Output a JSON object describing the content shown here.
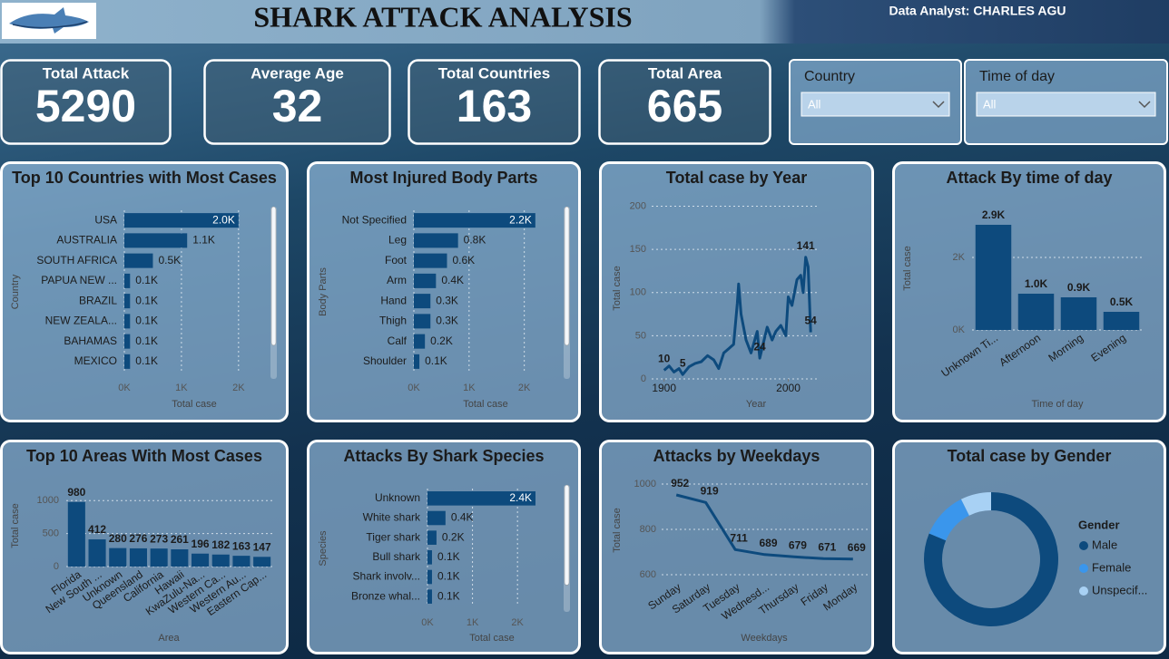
{
  "header": {
    "title": "SHARK ATTACK ANALYSIS",
    "analyst": "Data Analyst:  CHARLES AGU"
  },
  "kpis": [
    {
      "label": "Total Attack",
      "value": 5290
    },
    {
      "label": "Average Age",
      "value": 32
    },
    {
      "label": "Total Countries",
      "value": 163
    },
    {
      "label": "Total Area",
      "value": 665
    }
  ],
  "filters": [
    {
      "label": "Country",
      "value": "All"
    },
    {
      "label": "Time of day",
      "value": "All"
    }
  ],
  "chart_data": [
    {
      "type": "bar",
      "horizontal": true,
      "title": "Top 10 Countries with Most Cases",
      "categories": [
        "USA",
        "AUSTRALIA",
        "SOUTH AFRICA",
        "PAPUA NEW ...",
        "BRAZIL",
        "NEW ZEALA...",
        "BAHAMAS",
        "MEXICO"
      ],
      "values": [
        2000,
        1100,
        500,
        100,
        100,
        100,
        100,
        100
      ],
      "value_labels": [
        "2.0K",
        "1.1K",
        "0.5K",
        "0.1K",
        "0.1K",
        "0.1K",
        "0.1K",
        "0.1K"
      ],
      "color": "#0d4a7d",
      "xlim": [
        0,
        2400
      ],
      "xticks": [
        {
          "value": 0,
          "label": "0K"
        },
        {
          "value": 1000,
          "label": "1K"
        },
        {
          "value": 2000,
          "label": "2K"
        }
      ],
      "xlabel": "Total case",
      "ylabel": "Country",
      "grid": true
    },
    {
      "type": "bar",
      "horizontal": true,
      "title": "Most Injured Body Parts",
      "categories": [
        "Not Specified",
        "Leg",
        "Foot",
        "Arm",
        "Hand",
        "Thigh",
        "Calf",
        "Shoulder"
      ],
      "values": [
        2200,
        800,
        600,
        400,
        300,
        300,
        200,
        100
      ],
      "value_labels": [
        "2.2K",
        "0.8K",
        "0.6K",
        "0.4K",
        "0.3K",
        "0.3K",
        "0.2K",
        "0.1K"
      ],
      "color": "#0d4a7d",
      "xlim": [
        0,
        2400
      ],
      "xticks": [
        {
          "value": 0,
          "label": "0K"
        },
        {
          "value": 1000,
          "label": "1K"
        },
        {
          "value": 2000,
          "label": "2K"
        }
      ],
      "xlabel": "Total case",
      "ylabel": "Body Parts",
      "grid": true
    },
    {
      "type": "line",
      "title": "Total case by Year",
      "x": [
        1900,
        1904,
        1908,
        1912,
        1915,
        1920,
        1925,
        1930,
        1935,
        1940,
        1944,
        1948,
        1952,
        1956,
        1959,
        1960,
        1962,
        1966,
        1970,
        1975,
        1977,
        1983,
        1987,
        1990,
        1994,
        1998,
        2000,
        2003,
        2007,
        2010,
        2012,
        2014,
        2016,
        2018
      ],
      "values": [
        10,
        15,
        8,
        12,
        5,
        14,
        18,
        20,
        27,
        22,
        12,
        30,
        35,
        40,
        88,
        110,
        75,
        45,
        30,
        55,
        24,
        60,
        45,
        55,
        62,
        50,
        95,
        85,
        115,
        120,
        100,
        141,
        130,
        54
      ],
      "value_labels": [
        "10",
        null,
        null,
        null,
        "5",
        null,
        null,
        null,
        null,
        null,
        null,
        null,
        null,
        null,
        null,
        null,
        null,
        null,
        null,
        null,
        "24",
        null,
        null,
        null,
        null,
        null,
        null,
        null,
        null,
        null,
        null,
        "141",
        null,
        "54"
      ],
      "color": "#0d4a7d",
      "xlim": [
        1890,
        2023
      ],
      "xticks": [
        1900,
        2000
      ],
      "ylim": [
        0,
        210
      ],
      "yticks": [
        0,
        50,
        100,
        150,
        200
      ],
      "xlabel": "Year",
      "ylabel": "Total case",
      "grid": true
    },
    {
      "type": "bar",
      "title": "Attack By time of day",
      "categories": [
        "Unknown Ti...",
        "Afternoon",
        "Morning",
        "Evening"
      ],
      "values": [
        2900,
        1000,
        900,
        500
      ],
      "value_labels": [
        "2.9K",
        "1.0K",
        "0.9K",
        "0.5K"
      ],
      "color": "#0d4a7d",
      "ylim": [
        0,
        3200
      ],
      "yticks": [
        {
          "value": 0,
          "label": "0K"
        },
        {
          "value": 2000,
          "label": "2K"
        }
      ],
      "xlabel": "Time of day",
      "ylabel": "Total case",
      "grid": true
    },
    {
      "type": "bar",
      "title": "Top 10 Areas With Most Cases",
      "categories": [
        "Florida",
        "New South ...",
        "Unknown",
        "Queensland",
        "California",
        "Hawaii",
        "KwaZulu-Na...",
        "Western Ca...",
        "Western Au...",
        "Eastern Cap..."
      ],
      "values": [
        980,
        412,
        280,
        276,
        273,
        261,
        196,
        182,
        163,
        147
      ],
      "color": "#0d4a7d",
      "ylim": [
        0,
        1100
      ],
      "yticks": [
        0,
        500,
        1000
      ],
      "xlabel": "Area",
      "ylabel": "Total case",
      "grid": true
    },
    {
      "type": "bar",
      "horizontal": true,
      "title": "Attacks By Shark Species",
      "categories": [
        "Unknown",
        "White shark",
        "Tiger shark",
        "Bull shark",
        "Shark involv...",
        "Bronze whal..."
      ],
      "values": [
        2400,
        400,
        200,
        100,
        100,
        100
      ],
      "value_labels": [
        "2.4K",
        "0.4K",
        "0.2K",
        "0.1K",
        "0.1K",
        "0.1K"
      ],
      "color": "#0d4a7d",
      "xlim": [
        0,
        2400
      ],
      "xticks": [
        {
          "value": 0,
          "label": "0K"
        },
        {
          "value": 1000,
          "label": "1K"
        },
        {
          "value": 2000,
          "label": "2K"
        }
      ],
      "xlabel": "Total case",
      "ylabel": "Species",
      "grid": true
    },
    {
      "type": "line",
      "title": "Attacks by Weekdays",
      "categories": [
        "Sunday",
        "Saturday",
        "Tuesday",
        "Wednesd...",
        "Thursday",
        "Friday",
        "Monday"
      ],
      "values": [
        952,
        919,
        711,
        689,
        679,
        671,
        669
      ],
      "color": "#0d4a7d",
      "ylim": [
        580,
        1040
      ],
      "yticks": [
        600,
        800,
        1000
      ],
      "xlabel": "Weekdays",
      "ylabel": "Total case",
      "grid": true
    },
    {
      "type": "donut",
      "title": "Total case by Gender",
      "legend_title": "Gender",
      "categories": [
        "Male",
        "Female",
        "Unspecif..."
      ],
      "values": [
        4300,
        600,
        390
      ],
      "colors": [
        "#0d4a7d",
        "#3a96ec",
        "#a8d1f4"
      ]
    }
  ]
}
